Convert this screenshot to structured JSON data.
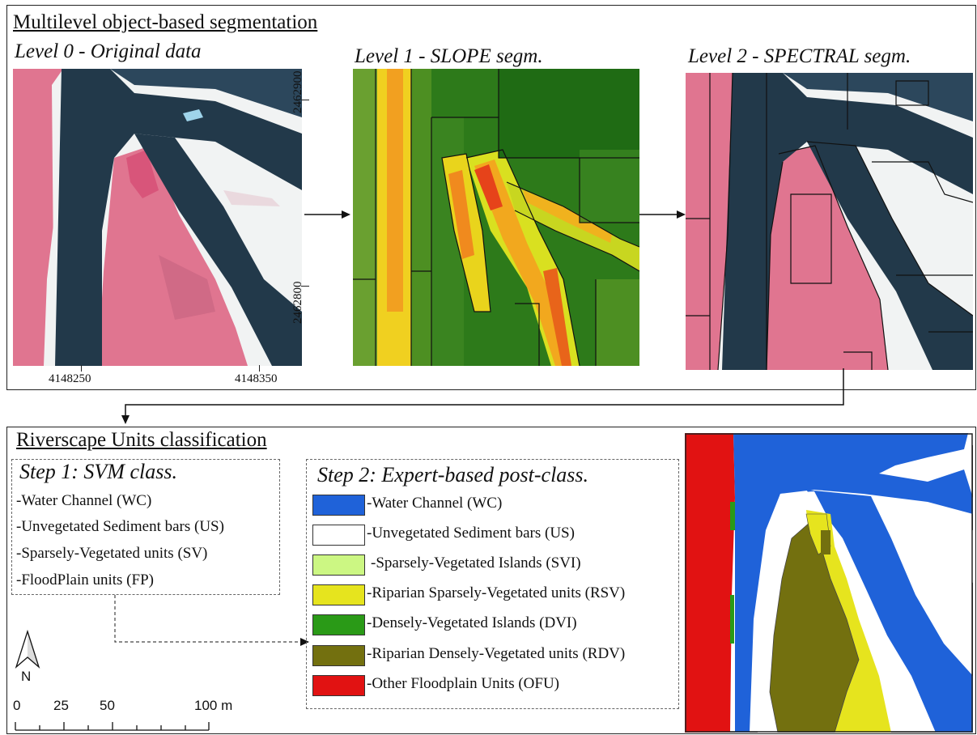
{
  "top": {
    "heading": "Multilevel object-based segmentation",
    "level0": {
      "title": "Level 0 - Original data",
      "y_ticks": [
        "2462900",
        "2462800"
      ],
      "x_ticks": [
        "4148250",
        "4148350"
      ]
    },
    "level1": {
      "title": "Level 1 - SLOPE segm."
    },
    "level2": {
      "title": "Level 2 - SPECTRAL segm."
    }
  },
  "bottom": {
    "heading": "Riverscape Units classification",
    "step1": {
      "title": "Step 1: SVM class.",
      "items": [
        "-Water Channel (WC)",
        "-Unvegetated Sediment bars (US)",
        "-Sparsely-Vegetated units (SV)",
        "-FloodPlain units (FP)"
      ]
    },
    "step2": {
      "title": "Step 2: Expert-based post-class.",
      "items": [
        {
          "label": "-Water Channel (WC)",
          "color": "#1f62d9"
        },
        {
          "label": "-Unvegetated Sediment bars (US)",
          "color": "#ffffff"
        },
        {
          "label": "-Sparsely-Vegetated Islands (SVI)",
          "color": "#ccf783"
        },
        {
          "label": "-Riparian Sparsely-Vegetated units (RSV)",
          "color": "#e6e41e"
        },
        {
          "label": "-Densely-Vegetated Islands (DVI)",
          "color": "#2a9a17"
        },
        {
          "label": "-Riparian Densely-Vegetated units (RDV)",
          "color": "#73700f"
        },
        {
          "label": "-Other Floodplain Units (OFU)",
          "color": "#e11212"
        }
      ]
    },
    "north_label": "N",
    "scale": {
      "ticks": [
        "0",
        "25",
        "50",
        "100 m"
      ]
    }
  },
  "colors": {
    "water": "#22394a",
    "veg": "#e07590",
    "sand": "#f1f3f3",
    "slope_low": "#1f6b14",
    "slope_high": "#e63c12"
  }
}
